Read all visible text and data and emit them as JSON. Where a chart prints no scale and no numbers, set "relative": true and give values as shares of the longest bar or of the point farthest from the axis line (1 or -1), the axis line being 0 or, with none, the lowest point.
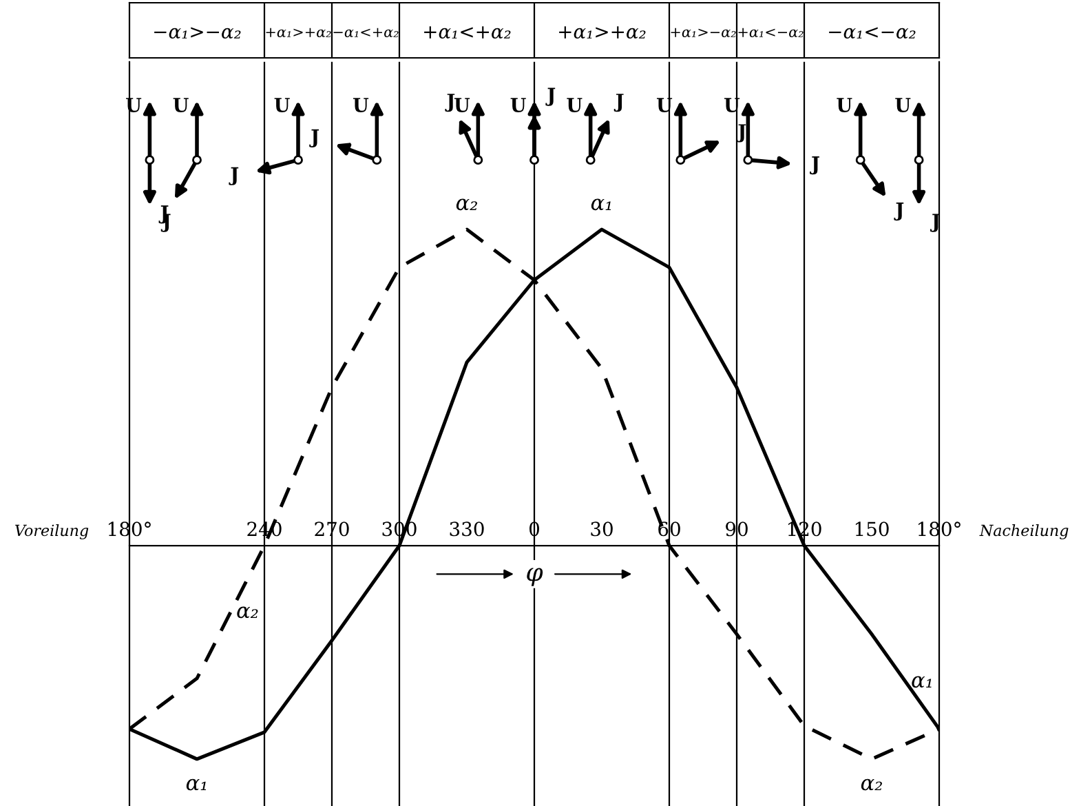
{
  "chart_data": {
    "type": "line",
    "relative": true,
    "xlabel": "φ",
    "categories": [
      "180°",
      null,
      "240",
      "270",
      "300",
      "330",
      "0",
      "30",
      "60",
      "90",
      "120",
      "150",
      "180°"
    ],
    "series": [
      {
        "color": "#000000",
        "line_style": "solid",
        "values": [
          -0.58,
          -0.675,
          -0.59,
          -0.3,
          0,
          0.58,
          0.84,
          1,
          0.88,
          0.5,
          0,
          -0.28,
          -0.58
        ]
      },
      {
        "color": "#000000",
        "line_style": "dashed",
        "values": [
          -0.58,
          -0.42,
          0,
          0.5,
          0.88,
          1,
          0.84,
          0.56,
          0,
          -0.28,
          -0.57,
          -0.675,
          -0.58
        ]
      }
    ],
    "ref_lines": [
      {
        "axis": "x",
        "value": "240",
        "color": "#000000"
      },
      {
        "axis": "x",
        "value": "270",
        "color": "#000000"
      },
      {
        "axis": "x",
        "value": "300",
        "color": "#000000"
      },
      {
        "axis": "x",
        "value": "0",
        "color": "#000000"
      },
      {
        "axis": "x",
        "value": "60",
        "color": "#000000"
      },
      {
        "axis": "x",
        "value": "90",
        "color": "#000000"
      },
      {
        "axis": "x",
        "value": "120",
        "color": "#000000"
      }
    ],
    "grid": false,
    "legend": false,
    "marker": "none",
    "annotations": [
      "Voreilung",
      "Nacheilung",
      "−α₁>−α₂",
      "+α₁>+α₂",
      "−α₁<+α₂",
      "+α₁<+α₂",
      "+α₁>+α₂",
      "+α₁>−α₂",
      "+α₁<−α₂",
      "−α₁<−α₂",
      "α₁",
      "α₂",
      "α₂",
      "α₁",
      "α₁",
      "α₂"
    ]
  }
}
